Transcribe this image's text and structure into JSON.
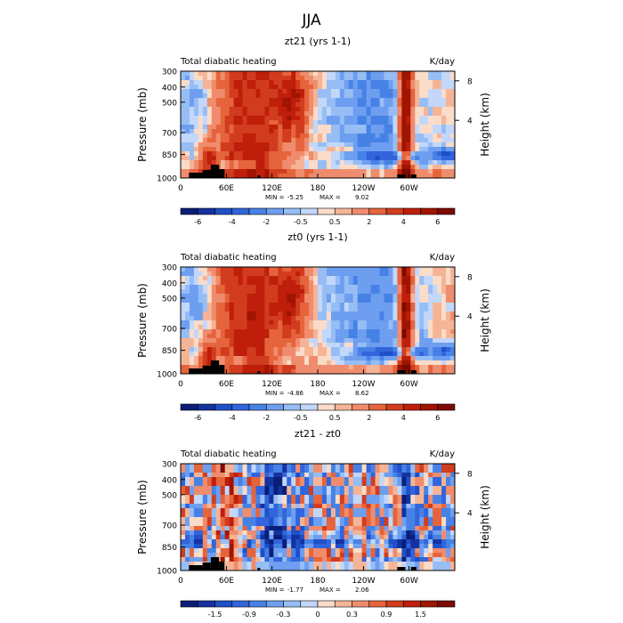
{
  "page_title": "JJA",
  "chart_data": [
    {
      "type": "heatmap",
      "title": "zt21 (yrs 1-1)",
      "left_label": "Total diabatic heating",
      "right_label": "K/day",
      "ylabel": "Pressure (mb)",
      "ylabel_right": "Height (km)",
      "y_ticks": [
        "300",
        "400",
        "500",
        "700",
        "850",
        "1000"
      ],
      "y_right_ticks": [
        "8",
        "4"
      ],
      "x_ticks": [
        "0",
        "60E",
        "120E",
        "180",
        "120W",
        "60W"
      ],
      "min_label": "MIN =",
      "min_value": "-5.25",
      "max_label": "MAX =",
      "max_value": "9.02",
      "colorbar_ticks": [
        "-6",
        "-4",
        "-2",
        "-0.5",
        "0.5",
        "2",
        "4",
        "6"
      ],
      "colorbar_levels": [
        -7,
        -6,
        -5,
        -4,
        -3,
        -2,
        -1,
        -0.5,
        0,
        0.5,
        1,
        2,
        3,
        4,
        5,
        6,
        7
      ],
      "colors": [
        "#0a1e78",
        "#1432a0",
        "#1e50c8",
        "#3264dc",
        "#4682e6",
        "#6e9ef0",
        "#96bef5",
        "#c3d7fa",
        "#fadcc8",
        "#f5b496",
        "#f08c6e",
        "#e6643c",
        "#d23c1e",
        "#be1e0a",
        "#a01400",
        "#7d0a00"
      ]
    },
    {
      "type": "heatmap",
      "title": "zt0 (yrs 1-1)",
      "left_label": "Total diabatic heating",
      "right_label": "K/day",
      "ylabel": "Pressure (mb)",
      "ylabel_right": "Height (km)",
      "y_ticks": [
        "300",
        "400",
        "500",
        "700",
        "850",
        "1000"
      ],
      "y_right_ticks": [
        "8",
        "4"
      ],
      "x_ticks": [
        "0",
        "60E",
        "120E",
        "180",
        "120W",
        "60W"
      ],
      "min_label": "MIN =",
      "min_value": "-4.86",
      "max_label": "MAX =",
      "max_value": "8.62",
      "colorbar_ticks": [
        "-6",
        "-4",
        "-2",
        "-0.5",
        "0.5",
        "2",
        "4",
        "6"
      ],
      "colorbar_levels": [
        -7,
        -6,
        -5,
        -4,
        -3,
        -2,
        -1,
        -0.5,
        0,
        0.5,
        1,
        2,
        3,
        4,
        5,
        6,
        7
      ],
      "colors": [
        "#0a1e78",
        "#1432a0",
        "#1e50c8",
        "#3264dc",
        "#4682e6",
        "#6e9ef0",
        "#96bef5",
        "#c3d7fa",
        "#fadcc8",
        "#f5b496",
        "#f08c6e",
        "#e6643c",
        "#d23c1e",
        "#be1e0a",
        "#a01400",
        "#7d0a00"
      ]
    },
    {
      "type": "heatmap",
      "title": "zt21 - zt0",
      "left_label": "Total diabatic heating",
      "right_label": "K/day",
      "ylabel": "Pressure (mb)",
      "ylabel_right": "Height (km)",
      "y_ticks": [
        "300",
        "400",
        "500",
        "700",
        "850",
        "1000"
      ],
      "y_right_ticks": [
        "8",
        "4"
      ],
      "x_ticks": [
        "0",
        "60E",
        "120E",
        "180",
        "120W",
        "60W"
      ],
      "min_label": "MIN =",
      "min_value": "-1.77",
      "max_label": "MAX =",
      "max_value": "2.06",
      "colorbar_ticks": [
        "-1.5",
        "-0.9",
        "-0.3",
        "0",
        "0.3",
        "0.9",
        "1.5"
      ],
      "colorbar_levels": [
        -2.1,
        -1.8,
        -1.5,
        -1.2,
        -0.9,
        -0.6,
        -0.3,
        -0.1,
        0,
        0.1,
        0.3,
        0.6,
        0.9,
        1.2,
        1.5,
        1.8,
        2.1
      ],
      "colors": [
        "#0a1e78",
        "#1432a0",
        "#1e50c8",
        "#3264dc",
        "#4682e6",
        "#6e9ef0",
        "#96bef5",
        "#c3d7fa",
        "#fadcc8",
        "#f5b496",
        "#f08c6e",
        "#e6643c",
        "#d23c1e",
        "#be1e0a",
        "#a01400",
        "#7d0a00"
      ]
    }
  ]
}
